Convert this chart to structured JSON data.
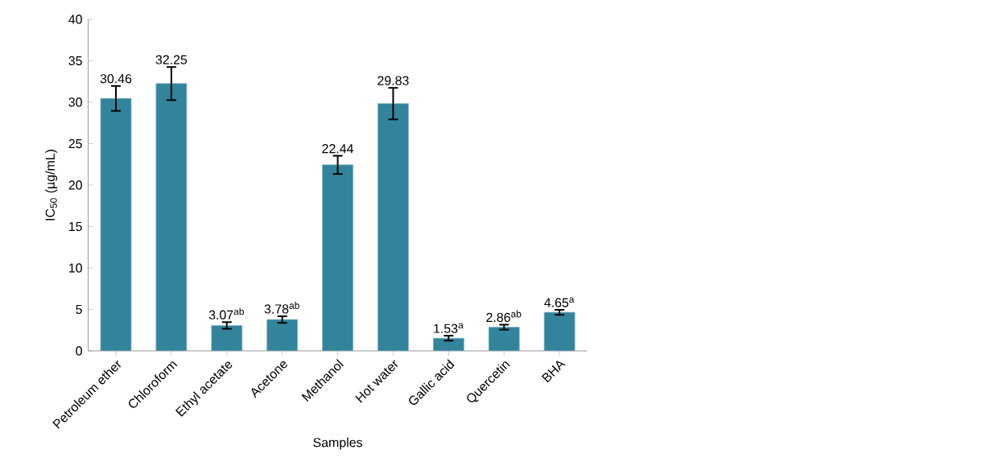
{
  "chart_data": {
    "type": "bar",
    "xlabel": "Samples",
    "ylabel": "IC$_{50}$ (µg/mL)",
    "categories": [
      "Petroleum ether",
      "Chloroform",
      "Ethyl acetate",
      "Acetone",
      "Methanol",
      "Hot water",
      "Gallic acid",
      "Quercetin",
      "BHA"
    ],
    "values": [
      30.46,
      32.25,
      3.07,
      3.78,
      22.44,
      29.83,
      1.53,
      2.86,
      4.65
    ],
    "errors": [
      1.5,
      2.0,
      0.4,
      0.4,
      1.1,
      1.9,
      0.3,
      0.3,
      0.3
    ],
    "value_labels": [
      "30.46",
      "32.25",
      "3.07$^{ab}$",
      "3.78$^{ab}$",
      "22.44",
      "29.83",
      "1.53$^{a}$",
      "2.86$^{ab}$",
      "4.65$^{a}$"
    ],
    "color": "#31849b",
    "ylim": [
      0,
      40
    ],
    "yticks": [
      0,
      5,
      10,
      15,
      20,
      25,
      30,
      35,
      40
    ],
    "grid": false
  }
}
